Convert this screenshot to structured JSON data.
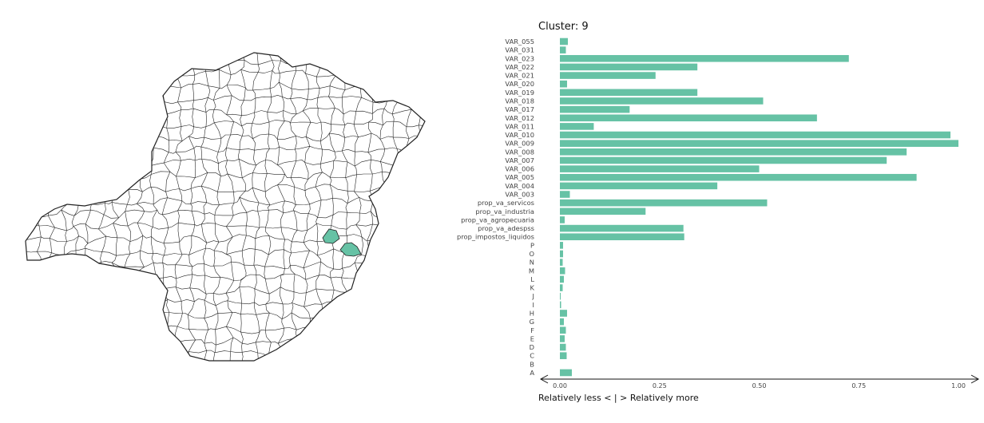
{
  "map": {
    "region_color": "#ffffff",
    "border_color": "#222222",
    "highlight_color": "#66c2a5"
  },
  "chart_data": {
    "type": "bar",
    "orientation": "horizontal",
    "title": "Cluster: 9",
    "xlabel": "Relatively less < | > Relatively more",
    "xlim": [
      0,
      1
    ],
    "xticks": [
      "0.00",
      "0.25",
      "0.50",
      "0.75",
      "1.00"
    ],
    "bar_color": "#66c2a5",
    "grid": false,
    "categories": [
      "VAR_055",
      "VAR_031",
      "VAR_023",
      "VAR_022",
      "VAR_021",
      "VAR_020",
      "VAR_019",
      "VAR_018",
      "VAR_017",
      "VAR_012",
      "VAR_011",
      "VAR_010",
      "VAR_009",
      "VAR_008",
      "VAR_007",
      "VAR_006",
      "VAR_005",
      "VAR_004",
      "VAR_003",
      "prop_va_servicos",
      "prop_va_industria",
      "prop_va_agropecuaria",
      "prop_va_adespss",
      "prop_impostos_liquidos",
      "P",
      "O",
      "N",
      "M",
      "L",
      "K",
      "J",
      "I",
      "H",
      "G",
      "F",
      "E",
      "D",
      "C",
      "B",
      "A"
    ],
    "values": [
      0.02,
      0.015,
      0.725,
      0.345,
      0.24,
      0.018,
      0.345,
      0.51,
      0.175,
      0.645,
      0.085,
      0.98,
      1.0,
      0.87,
      0.82,
      0.5,
      0.895,
      0.395,
      0.025,
      0.52,
      0.215,
      0.012,
      0.31,
      0.312,
      0.008,
      0.008,
      0.007,
      0.013,
      0.01,
      0.007,
      0.002,
      0.003,
      0.018,
      0.01,
      0.015,
      0.012,
      0.015,
      0.017,
      0.0,
      0.03
    ]
  }
}
